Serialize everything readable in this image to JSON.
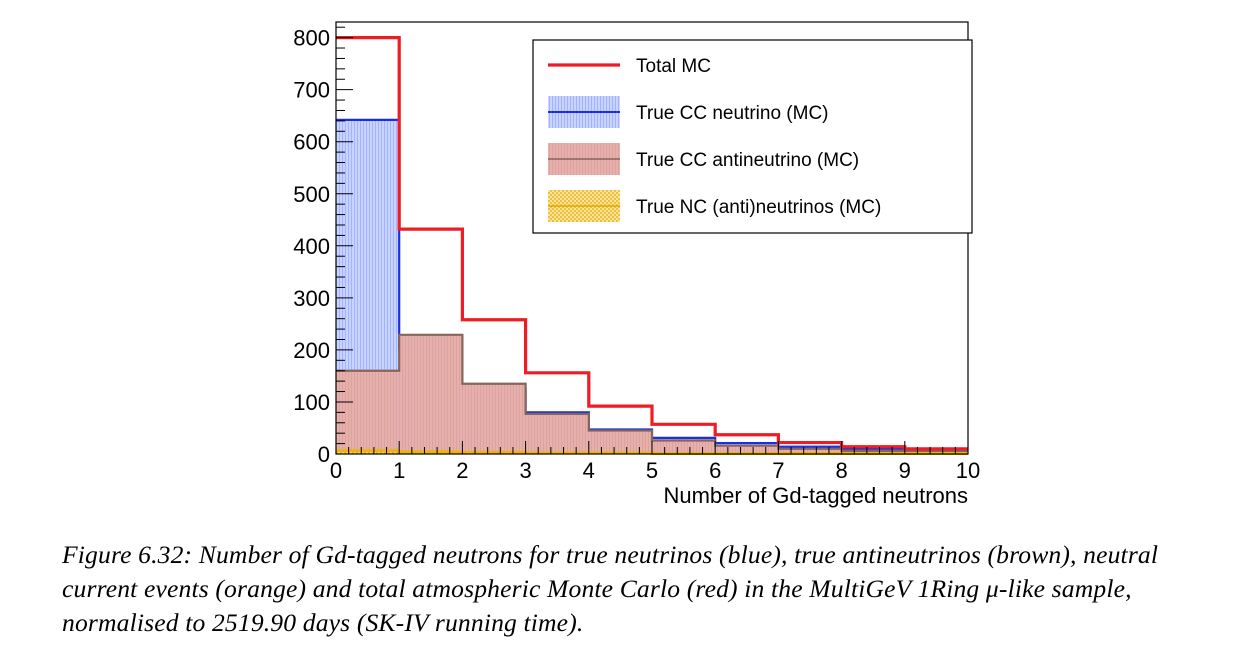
{
  "chart_data": {
    "type": "histogram",
    "xlabel": "Number of Gd-tagged neutrons",
    "ylabel": "",
    "xlim": [
      0,
      10
    ],
    "ylim": [
      0,
      830
    ],
    "bin_edges": [
      0,
      1,
      2,
      3,
      4,
      5,
      6,
      7,
      8,
      9,
      10
    ],
    "x_ticks": [
      "0",
      "1",
      "2",
      "3",
      "4",
      "5",
      "6",
      "7",
      "8",
      "9",
      "10"
    ],
    "y_ticks": [
      "0",
      "100",
      "200",
      "300",
      "400",
      "500",
      "600",
      "700",
      "800"
    ],
    "grid": false,
    "legend_position": "top-right",
    "series": [
      {
        "name": "Total MC",
        "style": "line",
        "color": "#ee1c24",
        "values": [
          800,
          432,
          258,
          156,
          92,
          57,
          37,
          22,
          14,
          10
        ]
      },
      {
        "name": "True CC neutrino (MC)",
        "style": "hatched fill",
        "color": "#1a2fe0",
        "values": [
          642,
          204,
          124,
          80,
          47,
          31,
          21,
          14,
          10,
          8
        ]
      },
      {
        "name": "True CC antineutrino (MC)",
        "style": "filled",
        "color": "#86655a",
        "values": [
          160,
          229,
          135,
          77,
          45,
          26,
          16,
          10,
          6,
          5
        ]
      },
      {
        "name": "True NC (anti)neutrinos (MC)",
        "style": "dotted fill",
        "color": "#f0b400",
        "values": [
          6,
          4,
          3,
          2,
          2,
          1,
          1,
          1,
          1,
          1
        ]
      }
    ]
  },
  "caption": "Figure 6.32: Number of Gd-tagged neutrons for true neutrinos (blue), true antineutrinos (brown), neutral current events (orange) and total atmospheric Monte Carlo (red) in the MultiGeV 1Ring μ-like sample, normalised to 2519.90 days (SK-IV running time)."
}
